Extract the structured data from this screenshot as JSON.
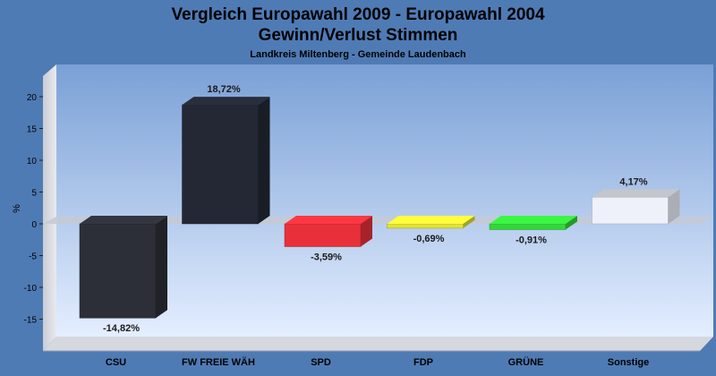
{
  "chart_data": {
    "type": "bar",
    "title": "Vergleich Europawahl 2009 - Europawahl 2004",
    "subtitle": "Gewinn/Verlust Stimmen",
    "caption": "Landkreis Miltenberg - Gemeinde Laudenbach",
    "ylabel": "%",
    "ylim": [
      -19,
      24
    ],
    "yticks": [
      -15,
      -10,
      -5,
      0,
      5,
      10,
      15,
      20
    ],
    "grid": false,
    "categories": [
      "CSU",
      "FW FREIE WÄH",
      "SPD",
      "FDP",
      "GRÜNE",
      "Sonstige"
    ],
    "values": [
      -14.82,
      18.72,
      -3.59,
      -0.69,
      -0.91,
      4.17
    ],
    "value_labels": [
      "-14,82%",
      "18,72%",
      "-3,59%",
      "-0,69%",
      "-0,91%",
      "4,17%"
    ],
    "colors": [
      "#2c2f38",
      "#232834",
      "#e8303a",
      "#e2e236",
      "#33d63a",
      "#eef1fa"
    ]
  }
}
